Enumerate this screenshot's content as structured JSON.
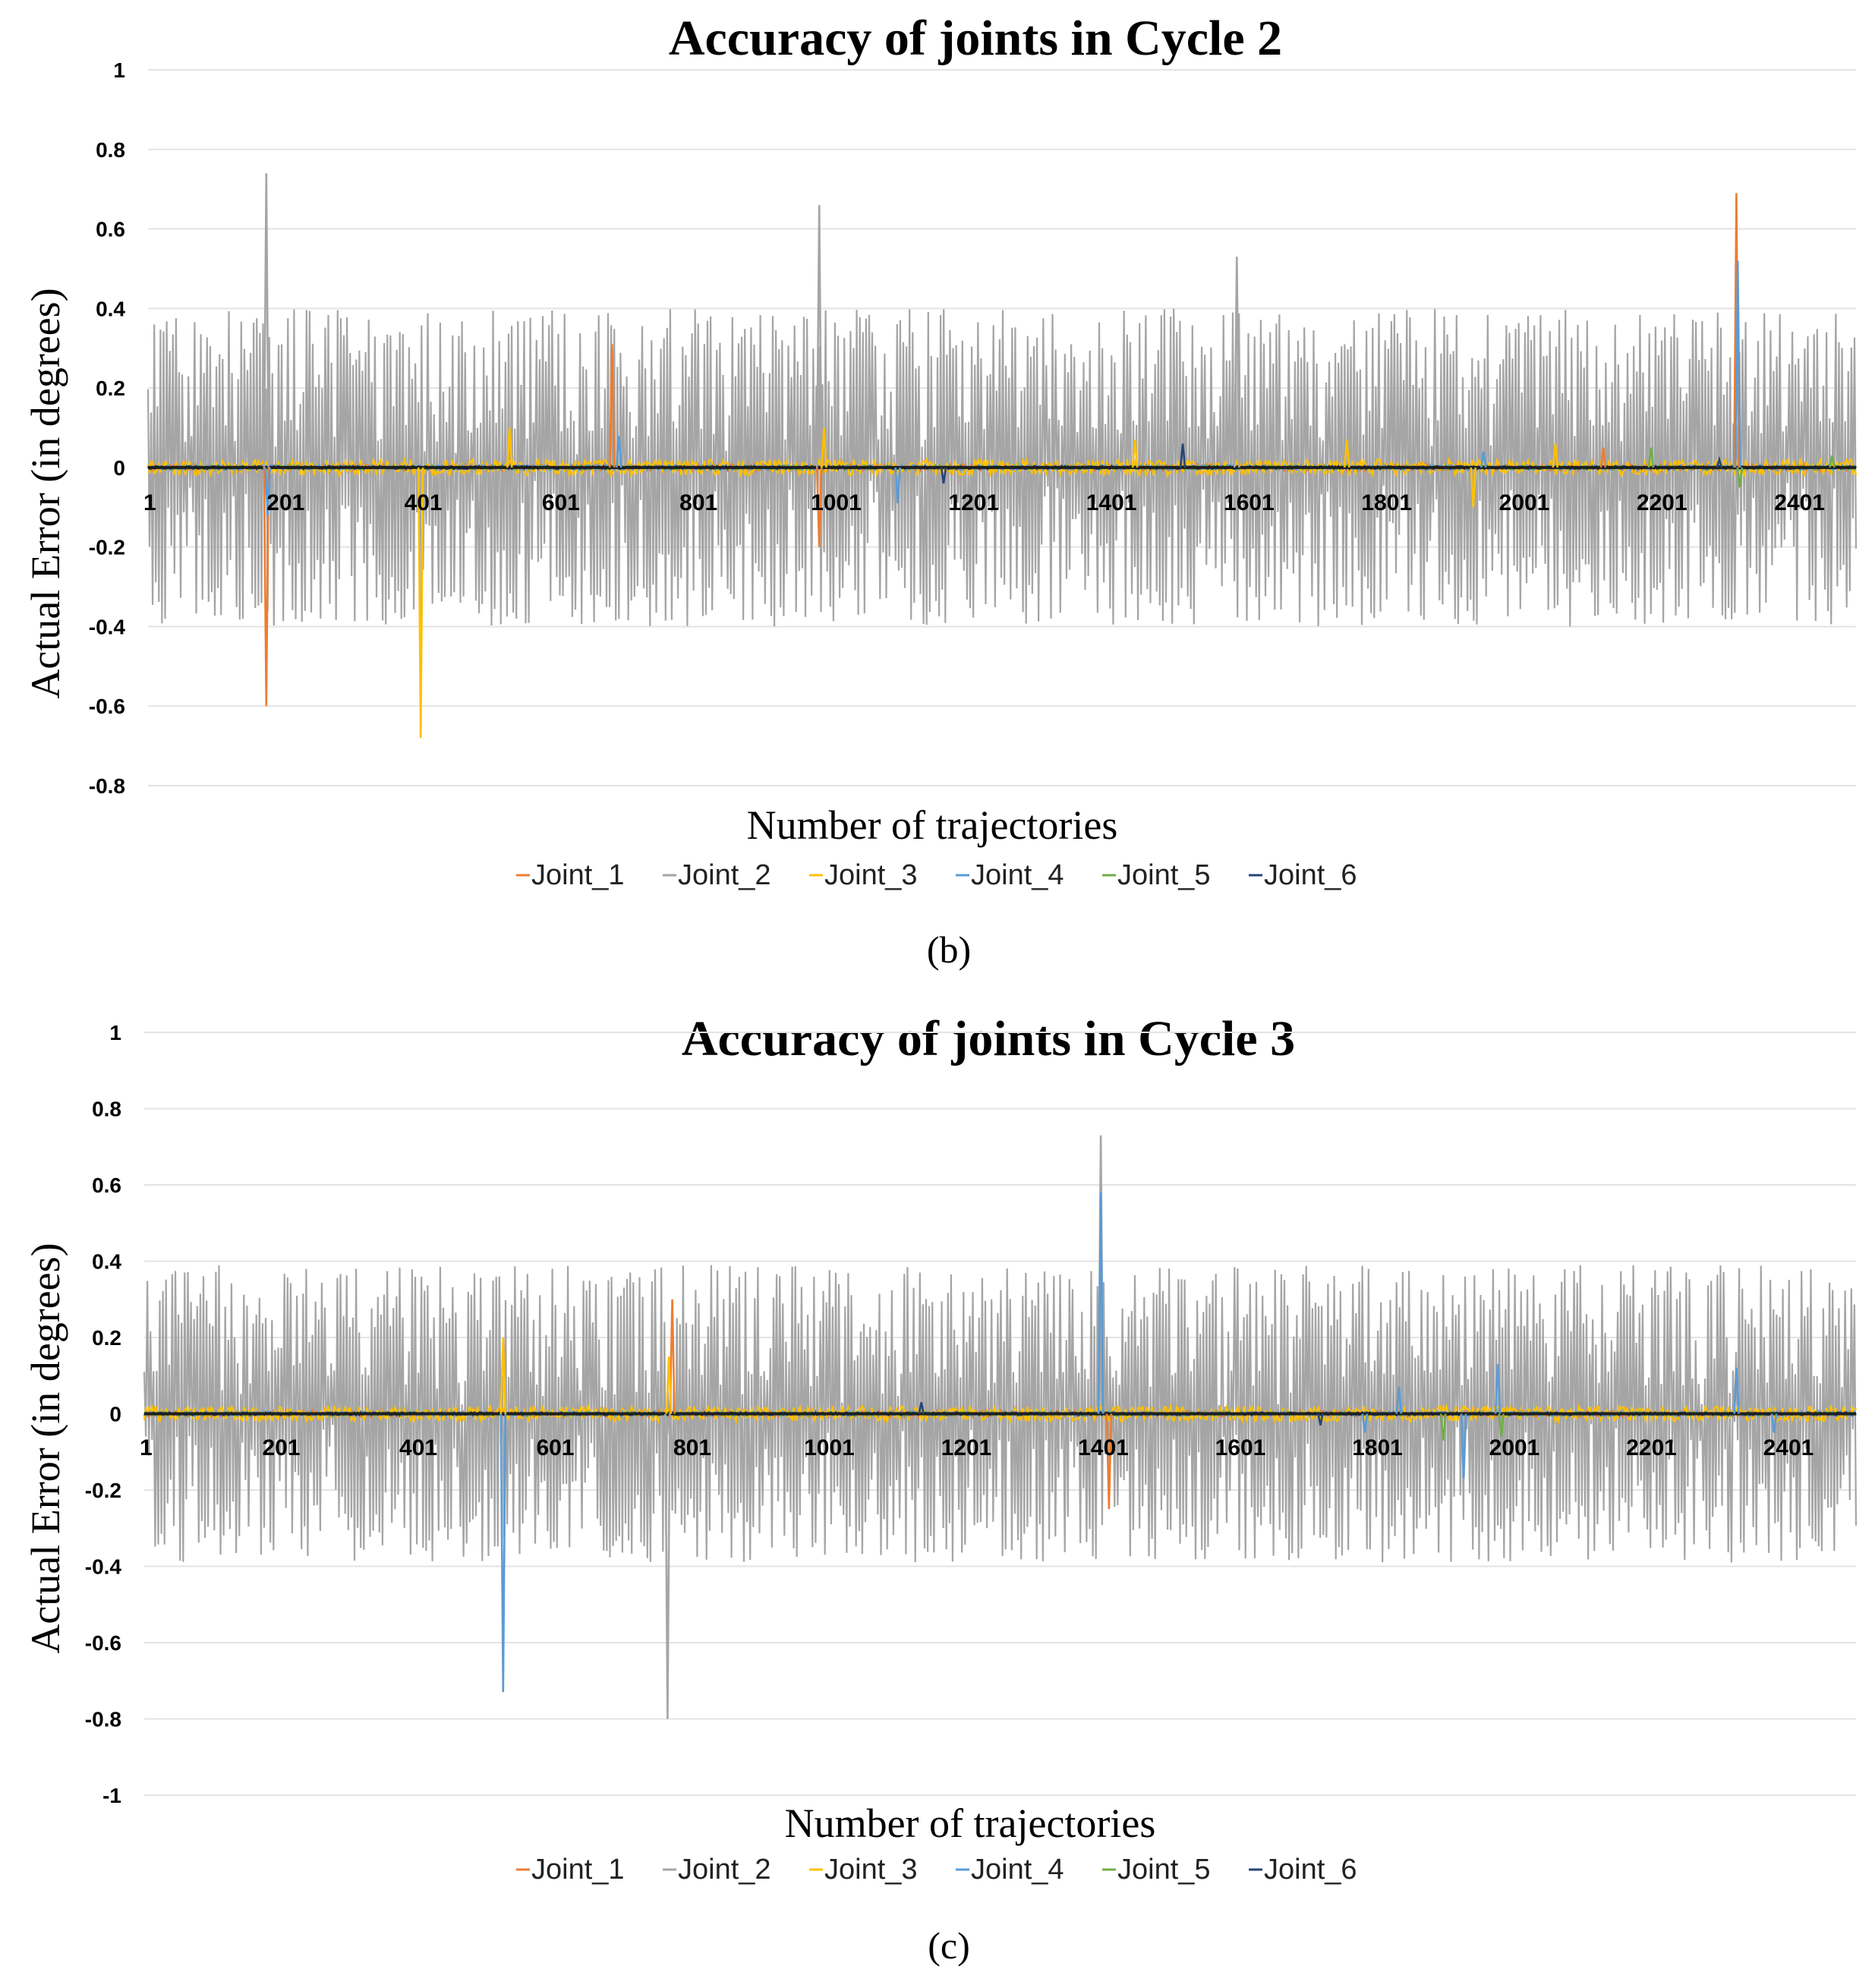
{
  "series_colors": {
    "Joint_1": "#ED7D31",
    "Joint_2": "#A5A5A5",
    "Joint_3": "#FFC000",
    "Joint_4": "#5B9BD5",
    "Joint_5": "#70AD47",
    "Joint_6": "#264478"
  },
  "chart_data": [
    {
      "type": "line",
      "panel": "b",
      "caption": "(b)",
      "title": "Accuracy of joints in Cycle 2",
      "xlabel": "Number of trajectories",
      "ylabel": "Actual Error (in degrees)",
      "ylim": [
        -0.8,
        1
      ],
      "yticks": [
        {
          "value": 1,
          "label": "1"
        },
        {
          "value": 0.8,
          "label": "0.8"
        },
        {
          "value": 0.6,
          "label": "0.6"
        },
        {
          "value": 0.4,
          "label": "0.4"
        },
        {
          "value": 0.2,
          "label": "0.2"
        },
        {
          "value": 0,
          "label": "0"
        },
        {
          "value": -0.2,
          "label": "-0.2"
        },
        {
          "value": -0.4,
          "label": "-0.4"
        },
        {
          "value": -0.6,
          "label": "-0.6"
        },
        {
          "value": -0.8,
          "label": "-0.8"
        }
      ],
      "xlim": [
        1,
        2500
      ],
      "xticks": [
        "1",
        "201",
        "401",
        "601",
        "801",
        "1001",
        "1201",
        "1401",
        "1601",
        "1801",
        "2001",
        "2201",
        "2401"
      ],
      "legend": [
        "Joint_1",
        "Joint_2",
        "Joint_3",
        "Joint_4",
        "Joint_5",
        "Joint_6"
      ],
      "noise": {
        "Joint_2": 0.4,
        "Joint_3": 0.02,
        "Joint_1": 0.008,
        "Joint_4": 0.006,
        "Joint_5": 0.005,
        "Joint_6": 0.004
      },
      "spikes": [
        {
          "series": "Joint_2",
          "x": 174,
          "y": 0.74
        },
        {
          "series": "Joint_1",
          "x": 174,
          "y": -0.6
        },
        {
          "series": "Joint_4",
          "x": 176,
          "y": -0.12
        },
        {
          "series": "Joint_3",
          "x": 400,
          "y": -0.68
        },
        {
          "series": "Joint_3",
          "x": 530,
          "y": 0.1
        },
        {
          "series": "Joint_1",
          "x": 680,
          "y": 0.31
        },
        {
          "series": "Joint_4",
          "x": 690,
          "y": 0.08
        },
        {
          "series": "Joint_2",
          "x": 983,
          "y": 0.66
        },
        {
          "series": "Joint_1",
          "x": 983,
          "y": -0.2
        },
        {
          "series": "Joint_3",
          "x": 990,
          "y": 0.1
        },
        {
          "series": "Joint_4",
          "x": 1098,
          "y": -0.09
        },
        {
          "series": "Joint_6",
          "x": 1165,
          "y": -0.04
        },
        {
          "series": "Joint_3",
          "x": 1445,
          "y": 0.07
        },
        {
          "series": "Joint_6",
          "x": 1515,
          "y": 0.06
        },
        {
          "series": "Joint_2",
          "x": 1594,
          "y": 0.53
        },
        {
          "series": "Joint_3",
          "x": 1755,
          "y": 0.07
        },
        {
          "series": "Joint_3",
          "x": 1940,
          "y": -0.1
        },
        {
          "series": "Joint_4",
          "x": 1955,
          "y": 0.04
        },
        {
          "series": "Joint_3",
          "x": 2060,
          "y": 0.06
        },
        {
          "series": "Joint_1",
          "x": 2130,
          "y": 0.05
        },
        {
          "series": "Joint_5",
          "x": 2200,
          "y": 0.05
        },
        {
          "series": "Joint_1",
          "x": 2325,
          "y": 0.69
        },
        {
          "series": "Joint_4",
          "x": 2327,
          "y": 0.52
        },
        {
          "series": "Joint_5",
          "x": 2330,
          "y": -0.05
        },
        {
          "series": "Joint_6",
          "x": 2300,
          "y": 0.02
        },
        {
          "series": "Joint_5",
          "x": 2465,
          "y": 0.03
        }
      ]
    },
    {
      "type": "line",
      "panel": "c",
      "caption": "(c)",
      "title": "Accuracy of joints in Cycle 3",
      "xlabel": "Number of trajectories",
      "ylabel": "Actual Error (in degrees)",
      "ylim": [
        -1,
        1
      ],
      "yticks": [
        {
          "value": 1,
          "label": "1"
        },
        {
          "value": 0.8,
          "label": "0.8"
        },
        {
          "value": 0.6,
          "label": "0.6"
        },
        {
          "value": 0.4,
          "label": "0.4"
        },
        {
          "value": 0.2,
          "label": "0.2"
        },
        {
          "value": 0,
          "label": "0"
        },
        {
          "value": -0.2,
          "label": "-0.2"
        },
        {
          "value": -0.4,
          "label": "-0.4"
        },
        {
          "value": -0.6,
          "label": "-0.6"
        },
        {
          "value": -0.8,
          "label": "-0.8"
        },
        {
          "value": -1,
          "label": "-1"
        }
      ],
      "xlim": [
        1,
        2510
      ],
      "xticks": [
        "1",
        "201",
        "401",
        "601",
        "801",
        "1001",
        "1201",
        "1401",
        "1601",
        "1801",
        "2001",
        "2201",
        "2401"
      ],
      "legend": [
        "Joint_1",
        "Joint_2",
        "Joint_3",
        "Joint_4",
        "Joint_5",
        "Joint_6"
      ],
      "noise": {
        "Joint_2": 0.39,
        "Joint_3": 0.02,
        "Joint_1": 0.008,
        "Joint_4": 0.006,
        "Joint_5": 0.005,
        "Joint_6": 0.004
      },
      "spikes": [
        {
          "series": "Joint_4",
          "x": 527,
          "y": -0.73
        },
        {
          "series": "Joint_3",
          "x": 527,
          "y": 0.2
        },
        {
          "series": "Joint_2",
          "x": 768,
          "y": -0.8
        },
        {
          "series": "Joint_1",
          "x": 775,
          "y": 0.3
        },
        {
          "series": "Joint_3",
          "x": 770,
          "y": 0.15
        },
        {
          "series": "Joint_6",
          "x": 1140,
          "y": 0.03
        },
        {
          "series": "Joint_2",
          "x": 1403,
          "y": 0.73
        },
        {
          "series": "Joint_4",
          "x": 1403,
          "y": 0.58
        },
        {
          "series": "Joint_1",
          "x": 1415,
          "y": -0.25
        },
        {
          "series": "Joint_4",
          "x": 1790,
          "y": -0.05
        },
        {
          "series": "Joint_4",
          "x": 1840,
          "y": 0.07
        },
        {
          "series": "Joint_5",
          "x": 1905,
          "y": -0.07
        },
        {
          "series": "Joint_4",
          "x": 1935,
          "y": -0.17
        },
        {
          "series": "Joint_4",
          "x": 1985,
          "y": 0.13
        },
        {
          "series": "Joint_5",
          "x": 1990,
          "y": -0.06
        },
        {
          "series": "Joint_6",
          "x": 1725,
          "y": -0.03
        },
        {
          "series": "Joint_4",
          "x": 2335,
          "y": 0.12
        },
        {
          "series": "Joint_4",
          "x": 2390,
          "y": -0.05
        }
      ]
    }
  ]
}
